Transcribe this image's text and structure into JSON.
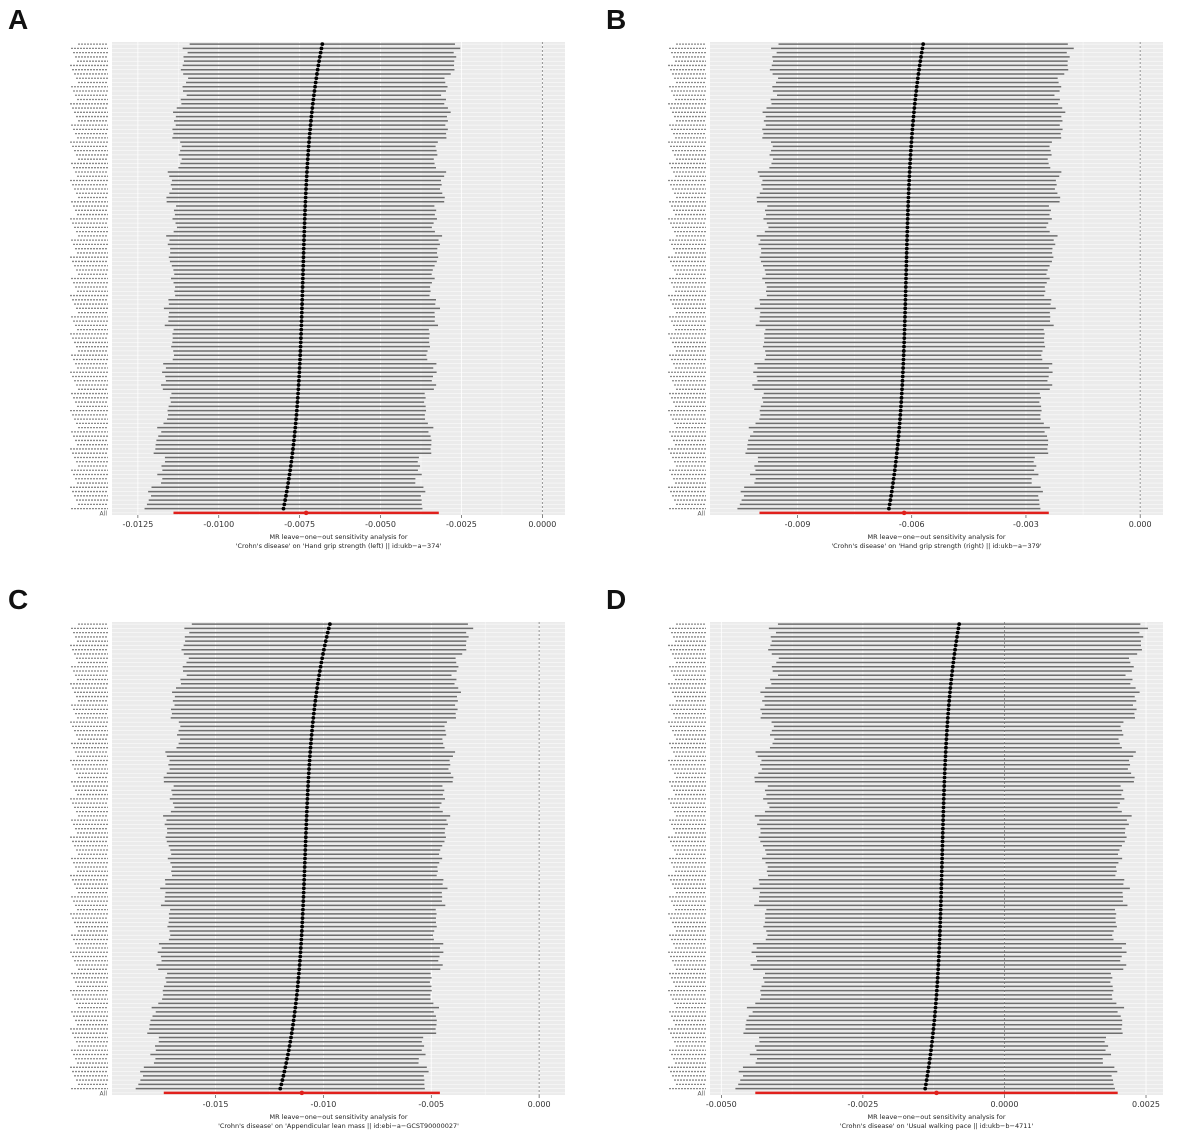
{
  "panels": [
    {
      "letter": "A",
      "chart_data": {
        "type": "forest",
        "n_snps": 110,
        "all_label": "All",
        "snp_labels_visible": false,
        "estimate_range": [
          -0.008,
          -0.0068
        ],
        "ci_half_width": 0.0041,
        "overall": {
          "estimate": -0.0073,
          "lower": -0.0114,
          "upper": -0.0032
        },
        "xlim": [
          -0.0133,
          0.0007
        ],
        "xticks": [
          "-0.0125",
          "-0.0100",
          "-0.0075",
          "-0.0050",
          "-0.0025",
          "0.0000"
        ],
        "xtick_values": [
          -0.0125,
          -0.01,
          -0.0075,
          -0.005,
          -0.0025,
          0.0
        ],
        "vline": 0.0,
        "xlabel_line1": "MR leave−one−out sensitivity analysis for",
        "xlabel_line2": "'Crohn's disease' on 'Hand grip strength (left) || id:ukb−a−374'"
      }
    },
    {
      "letter": "B",
      "chart_data": {
        "type": "forest",
        "n_snps": 110,
        "all_label": "All",
        "snp_labels_visible": false,
        "estimate_range": [
          -0.0066,
          -0.0057
        ],
        "ci_half_width": 0.0038,
        "overall": {
          "estimate": -0.0062,
          "lower": -0.01,
          "upper": -0.0024
        },
        "xlim": [
          -0.0113,
          0.0006
        ],
        "xticks": [
          "-0.009",
          "-0.006",
          "-0.003",
          "0.000"
        ],
        "xtick_values": [
          -0.009,
          -0.006,
          -0.003,
          0.0
        ],
        "vline": 0.0,
        "xlabel_line1": "MR leave−one−out sensitivity analysis for",
        "xlabel_line2": "'Crohn's disease' on 'Hand grip strength (right) || id:ukb−a−379'"
      }
    },
    {
      "letter": "C",
      "chart_data": {
        "type": "forest",
        "n_snps": 110,
        "all_label": "All",
        "snp_labels_visible": false,
        "estimate_range": [
          -0.012,
          -0.0097
        ],
        "ci_half_width": 0.0064,
        "overall": {
          "estimate": -0.011,
          "lower": -0.0174,
          "upper": -0.0046
        },
        "xlim": [
          -0.0198,
          0.0012
        ],
        "xticks": [
          "-0.015",
          "-0.010",
          "-0.005",
          "0.000"
        ],
        "xtick_values": [
          -0.015,
          -0.01,
          -0.005,
          0.0
        ],
        "vline": 0.0,
        "xlabel_line1": "MR leave−one−out sensitivity analysis for",
        "xlabel_line2": "'Crohn's disease' on 'Appendicular lean mass || id:ebi−a−GCST90000027'"
      }
    },
    {
      "letter": "D",
      "chart_data": {
        "type": "forest",
        "n_snps": 110,
        "all_label": "All",
        "snp_labels_visible": false,
        "estimate_range": [
          -0.0014,
          -0.0008
        ],
        "ci_half_width": 0.0032,
        "overall": {
          "estimate": -0.0012,
          "lower": -0.0044,
          "upper": 0.002
        },
        "xlim": [
          -0.0052,
          0.0028
        ],
        "xticks": [
          "-0.0050",
          "-0.0025",
          "0.0000",
          "0.0025"
        ],
        "xtick_values": [
          -0.005,
          -0.0025,
          0.0,
          0.0025
        ],
        "vline": 0.0,
        "xlabel_line1": "MR leave−one−out sensitivity analysis for",
        "xlabel_line2": "'Crohn's disease' on 'Usual walking pace || id:ukb−b−4711'"
      }
    }
  ],
  "colors": {
    "panel_bg": "#ebebeb",
    "grid": "#ffffff",
    "ci_line": "#6e6e6e",
    "point": "#000000",
    "overall": "#e0201c",
    "vline": "#7f7f7f"
  }
}
